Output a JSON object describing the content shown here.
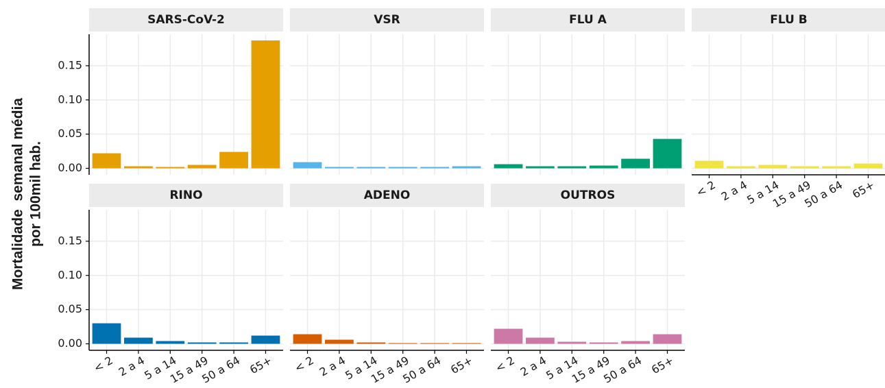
{
  "y_axis_title": [
    "Mortalidade  semanal média",
    "por 100mil hab."
  ],
  "chart_data": [
    {
      "type": "bar",
      "title": "SARS-CoV-2",
      "categories": [
        null,
        null,
        null,
        null,
        null,
        null
      ],
      "values": [
        0.022,
        0.003,
        0.002,
        0.005,
        0.024,
        0.187
      ],
      "color": "#E69F00",
      "ylim": [
        -0.0095,
        0.196
      ],
      "yticks": [
        {
          "value": 0,
          "label": "0.00"
        },
        {
          "value": 0.05,
          "label": "0.05"
        },
        {
          "value": 0.1,
          "label": "0.10"
        },
        {
          "value": 0.15,
          "label": "0.15"
        }
      ],
      "grid": true
    },
    {
      "type": "bar",
      "title": "VSR",
      "categories": [
        null,
        null,
        null,
        null,
        null,
        null
      ],
      "values": [
        0.009,
        0.002,
        0.002,
        0.002,
        0.002,
        0.003
      ],
      "color": "#56B4E9",
      "ylim": [
        -0.0095,
        0.196
      ],
      "yticks": [
        {
          "value": 0,
          "label": "0.00"
        },
        {
          "value": 0.05,
          "label": "0.05"
        },
        {
          "value": 0.1,
          "label": "0.10"
        },
        {
          "value": 0.15,
          "label": "0.15"
        }
      ],
      "grid": true
    },
    {
      "type": "bar",
      "title": "FLU A",
      "categories": [
        null,
        null,
        null,
        null,
        null,
        null
      ],
      "values": [
        0.006,
        0.003,
        0.003,
        0.004,
        0.014,
        0.043
      ],
      "color": "#009E73",
      "ylim": [
        -0.0095,
        0.196
      ],
      "yticks": [
        {
          "value": 0,
          "label": "0.00"
        },
        {
          "value": 0.05,
          "label": "0.05"
        },
        {
          "value": 0.1,
          "label": "0.10"
        },
        {
          "value": 0.15,
          "label": "0.15"
        }
      ],
      "grid": true
    },
    {
      "type": "bar",
      "title": "FLU B",
      "categories": [
        "< 2",
        "2 a 4",
        "5 a 14",
        "15 a 49",
        "50 a 64",
        "65+"
      ],
      "values": [
        0.011,
        0.003,
        0.005,
        0.003,
        0.003,
        0.007
      ],
      "color": "#F0E442",
      "ylim": [
        -0.0095,
        0.196
      ],
      "yticks": [
        {
          "value": 0,
          "label": "0.00"
        },
        {
          "value": 0.05,
          "label": "0.05"
        },
        {
          "value": 0.1,
          "label": "0.10"
        },
        {
          "value": 0.15,
          "label": "0.15"
        }
      ],
      "grid": true
    },
    {
      "type": "bar",
      "title": "RINO",
      "categories": [
        "< 2",
        "2 a 4",
        "5 a 14",
        "15 a 49",
        "50 a 64",
        "65+"
      ],
      "values": [
        0.03,
        0.009,
        0.004,
        0.002,
        0.002,
        0.012
      ],
      "color": "#0072B2",
      "ylim": [
        -0.0095,
        0.196
      ],
      "yticks": [
        {
          "value": 0,
          "label": "0.00"
        },
        {
          "value": 0.05,
          "label": "0.05"
        },
        {
          "value": 0.1,
          "label": "0.10"
        },
        {
          "value": 0.15,
          "label": "0.15"
        }
      ],
      "grid": true
    },
    {
      "type": "bar",
      "title": "ADENO",
      "categories": [
        "< 2",
        "2 a 4",
        "5 a 14",
        "15 a 49",
        "50 a 64",
        "65+"
      ],
      "values": [
        0.014,
        0.006,
        0.002,
        0.001,
        0.001,
        0.001
      ],
      "color": "#D55E00",
      "ylim": [
        -0.0095,
        0.196
      ],
      "yticks": [
        {
          "value": 0,
          "label": "0.00"
        },
        {
          "value": 0.05,
          "label": "0.05"
        },
        {
          "value": 0.1,
          "label": "0.10"
        },
        {
          "value": 0.15,
          "label": "0.15"
        }
      ],
      "grid": true
    },
    {
      "type": "bar",
      "title": "OUTROS",
      "categories": [
        "< 2",
        "2 a 4",
        "5 a 14",
        "15 a 49",
        "50 a 64",
        "65+"
      ],
      "values": [
        0.022,
        0.009,
        0.003,
        0.002,
        0.004,
        0.014
      ],
      "color": "#CC79A7",
      "ylim": [
        -0.0095,
        0.196
      ],
      "yticks": [
        {
          "value": 0,
          "label": "0.00"
        },
        {
          "value": 0.05,
          "label": "0.05"
        },
        {
          "value": 0.1,
          "label": "0.10"
        },
        {
          "value": 0.15,
          "label": "0.15"
        }
      ],
      "grid": true
    }
  ]
}
